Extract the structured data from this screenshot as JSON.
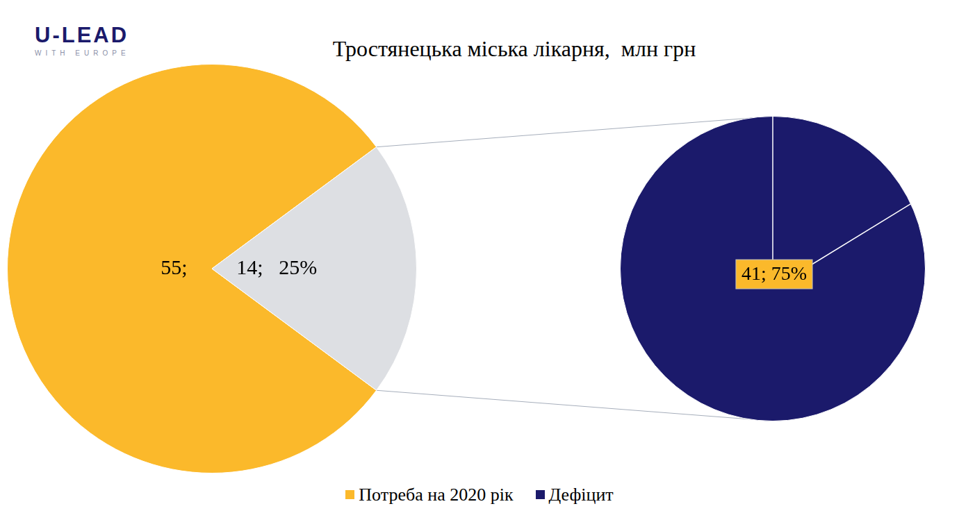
{
  "logo": {
    "title": "U-LEAD",
    "subtitle": "WITH EUROPE"
  },
  "chart_data": [
    {
      "type": "pie",
      "title": "Тростянецька міська лікарня,  млн грн",
      "categories": [
        "Потреба на 2020 рік",
        null
      ],
      "values": [
        55,
        14
      ],
      "value_labels": [
        "55;",
        "14;   25%"
      ],
      "colors": [
        "#fbb92b",
        "#dddfe3"
      ],
      "data_labels": true,
      "legend": "bottom"
    },
    {
      "type": "pie",
      "categories": [
        "Дефіцит"
      ],
      "values": [
        41
      ],
      "value_labels": [
        "41; 75%"
      ],
      "colors": [
        "#1b1a6b"
      ],
      "data_labels": true,
      "legend": "bottom"
    }
  ]
}
